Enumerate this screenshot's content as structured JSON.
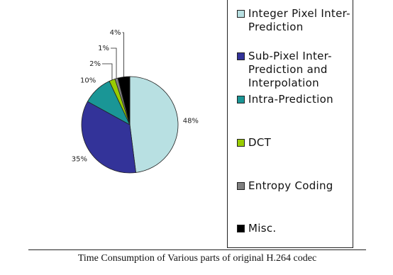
{
  "chart_data": {
    "type": "pie",
    "title": "Time Consumption of Various parts of original H.264 codec",
    "categories": [
      "Integer Pixel Inter-Prediction",
      "Sub-Pixel Inter-Prediction and Interpolation",
      "Intra-Prediction",
      "DCT",
      "Entropy Coding",
      "Misc."
    ],
    "values": [
      48,
      35,
      10,
      2,
      1,
      4
    ],
    "value_labels": [
      "48%",
      "35%",
      "10%",
      "2%",
      "1%",
      "4%"
    ],
    "colors": [
      "#b8e0e2",
      "#333399",
      "#1a9696",
      "#99cc00",
      "#808080",
      "#000000"
    ],
    "legend": "right"
  }
}
